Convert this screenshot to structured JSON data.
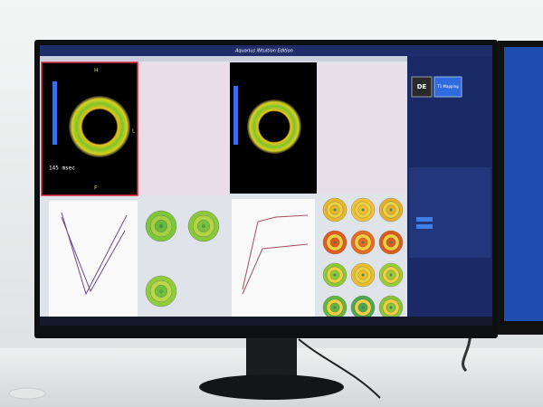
{
  "app": {
    "title": "Aquarius iNtuition Edition"
  },
  "sidebar": {
    "buttons": [
      "DE",
      "T1 Mapping"
    ]
  },
  "viewport": {
    "time_label": "145 msec",
    "orientation": [
      "H",
      "L",
      "F"
    ]
  }
}
